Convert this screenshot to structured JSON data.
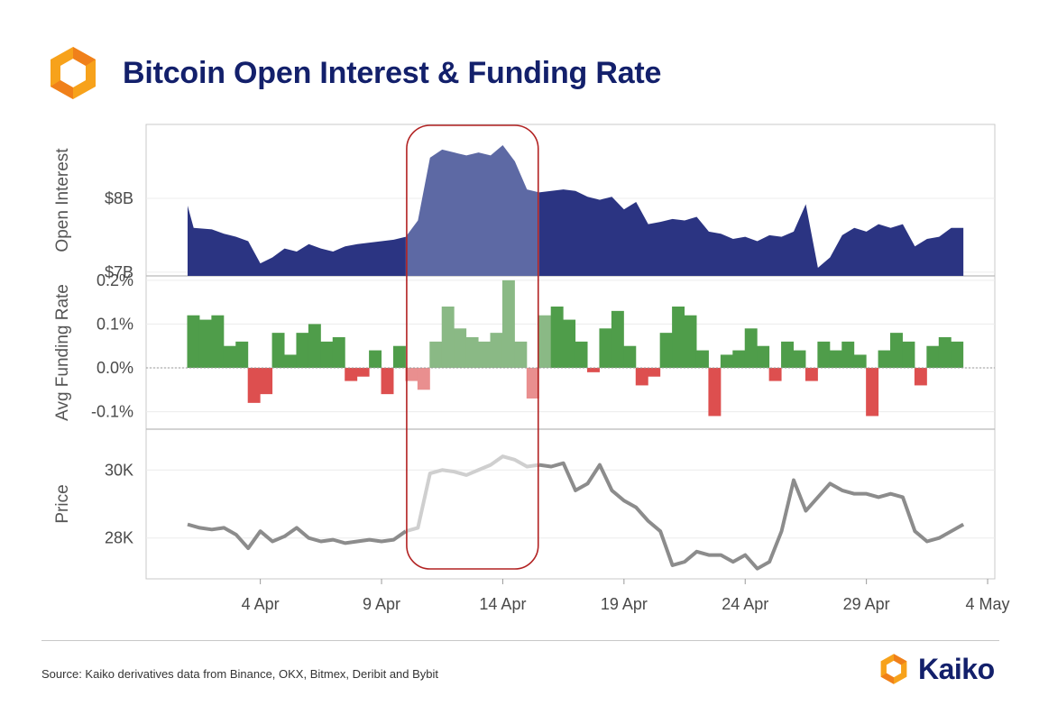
{
  "header": {
    "title": "Bitcoin Open Interest & Funding Rate",
    "logo_icon": "kaiko-hexagon-logo-icon"
  },
  "footer": {
    "source": "Source: Kaiko derivatives data from Binance, OKX, Bitmex, Deribit and Bybit",
    "brand": "Kaiko",
    "brand_icon": "kaiko-hexagon-logo-icon"
  },
  "colors": {
    "title": "#13206b",
    "oi_fill": "#2b3482",
    "oi_highlight": "#5d69a4",
    "funding_positive": "#4f9d4a",
    "funding_negative": "#dd4f4f",
    "funding_positive_highlight": "#8ab985",
    "funding_negative_highlight": "#e98f8f",
    "price_line": "#8c8c8c",
    "price_highlight": "#cfcfcf",
    "highlight_box": "#b22222"
  },
  "chart_data": [
    {
      "type": "area",
      "panel": "open_interest",
      "ylabel": "Open Interest",
      "yticks": [
        "$7B",
        "$8B"
      ],
      "ytick_values": [
        7.0,
        8.0
      ],
      "ylim": [
        6.95,
        9.0
      ],
      "unit": "USD billions",
      "x_start": "2023-04-01",
      "x_end": "2023-05-03",
      "points": [
        [
          "2023-04-01",
          7.9
        ],
        [
          "2023-04-01T06",
          7.6
        ],
        [
          "2023-04-02",
          7.58
        ],
        [
          "2023-04-02T12",
          7.52
        ],
        [
          "2023-04-03",
          7.48
        ],
        [
          "2023-04-03T12",
          7.42
        ],
        [
          "2023-04-04",
          7.12
        ],
        [
          "2023-04-04T12",
          7.2
        ],
        [
          "2023-04-05",
          7.32
        ],
        [
          "2023-04-05T12",
          7.28
        ],
        [
          "2023-04-06",
          7.38
        ],
        [
          "2023-04-06T12",
          7.32
        ],
        [
          "2023-04-07",
          7.28
        ],
        [
          "2023-04-07T12",
          7.35
        ],
        [
          "2023-04-08",
          7.38
        ],
        [
          "2023-04-08T12",
          7.4
        ],
        [
          "2023-04-09",
          7.42
        ],
        [
          "2023-04-09T12",
          7.44
        ],
        [
          "2023-04-10",
          7.48
        ],
        [
          "2023-04-10T12",
          7.7
        ],
        [
          "2023-04-11",
          8.55
        ],
        [
          "2023-04-11T12",
          8.66
        ],
        [
          "2023-04-12",
          8.62
        ],
        [
          "2023-04-12T12",
          8.58
        ],
        [
          "2023-04-13",
          8.62
        ],
        [
          "2023-04-13T12",
          8.58
        ],
        [
          "2023-04-14",
          8.72
        ],
        [
          "2023-04-14T12",
          8.5
        ],
        [
          "2023-04-15",
          8.12
        ],
        [
          "2023-04-15T12",
          8.08
        ],
        [
          "2023-04-16",
          8.1
        ],
        [
          "2023-04-16T12",
          8.12
        ],
        [
          "2023-04-17",
          8.1
        ],
        [
          "2023-04-17T12",
          8.02
        ],
        [
          "2023-04-18",
          7.98
        ],
        [
          "2023-04-18T12",
          8.02
        ],
        [
          "2023-04-19",
          7.85
        ],
        [
          "2023-04-19T12",
          7.95
        ],
        [
          "2023-04-20",
          7.65
        ],
        [
          "2023-04-20T12",
          7.68
        ],
        [
          "2023-04-21",
          7.72
        ],
        [
          "2023-04-21T12",
          7.7
        ],
        [
          "2023-04-22",
          7.75
        ],
        [
          "2023-04-22T12",
          7.55
        ],
        [
          "2023-04-23",
          7.52
        ],
        [
          "2023-04-23T12",
          7.45
        ],
        [
          "2023-04-24",
          7.48
        ],
        [
          "2023-04-24T12",
          7.42
        ],
        [
          "2023-04-25",
          7.5
        ],
        [
          "2023-04-25T12",
          7.48
        ],
        [
          "2023-04-26",
          7.55
        ],
        [
          "2023-04-26T12",
          7.92
        ],
        [
          "2023-04-27",
          7.06
        ],
        [
          "2023-04-27T12",
          7.2
        ],
        [
          "2023-04-28",
          7.5
        ],
        [
          "2023-04-28T12",
          7.6
        ],
        [
          "2023-04-29",
          7.55
        ],
        [
          "2023-04-29T12",
          7.65
        ],
        [
          "2023-04-30",
          7.6
        ],
        [
          "2023-04-30T12",
          7.65
        ],
        [
          "2023-05-01",
          7.35
        ],
        [
          "2023-05-01T12",
          7.45
        ],
        [
          "2023-05-02",
          7.48
        ],
        [
          "2023-05-02T12",
          7.6
        ],
        [
          "2023-05-03",
          7.6
        ]
      ]
    },
    {
      "type": "bar",
      "panel": "funding_rate",
      "ylabel": "Avg Funding Rate",
      "yticks": [
        "-0.1%",
        "0.0%",
        "0.1%",
        "0.2%"
      ],
      "ytick_values": [
        -0.1,
        0.0,
        0.1,
        0.2
      ],
      "ylim": [
        -0.14,
        0.21
      ],
      "unit": "percent",
      "x": [
        "2023-04-01",
        "2023-04-01T12",
        "2023-04-02",
        "2023-04-02T12",
        "2023-04-03",
        "2023-04-03T12",
        "2023-04-04",
        "2023-04-04T12",
        "2023-04-05",
        "2023-04-05T12",
        "2023-04-06",
        "2023-04-06T12",
        "2023-04-07",
        "2023-04-07T12",
        "2023-04-08",
        "2023-04-08T12",
        "2023-04-09",
        "2023-04-09T12",
        "2023-04-10",
        "2023-04-10T12",
        "2023-04-11",
        "2023-04-11T12",
        "2023-04-12",
        "2023-04-12T12",
        "2023-04-13",
        "2023-04-13T12",
        "2023-04-14",
        "2023-04-14T12",
        "2023-04-15",
        "2023-04-15T12",
        "2023-04-16",
        "2023-04-16T12",
        "2023-04-17",
        "2023-04-17T12",
        "2023-04-18",
        "2023-04-18T12",
        "2023-04-19",
        "2023-04-19T12",
        "2023-04-20",
        "2023-04-20T12",
        "2023-04-21",
        "2023-04-21T12",
        "2023-04-22",
        "2023-04-22T12",
        "2023-04-23",
        "2023-04-23T12",
        "2023-04-24",
        "2023-04-24T12",
        "2023-04-25",
        "2023-04-25T12",
        "2023-04-26",
        "2023-04-26T12",
        "2023-04-27",
        "2023-04-27T12",
        "2023-04-28",
        "2023-04-28T12",
        "2023-04-29",
        "2023-04-29T12",
        "2023-04-30",
        "2023-04-30T12",
        "2023-05-01",
        "2023-05-01T12",
        "2023-05-02",
        "2023-05-02T12"
      ],
      "values": [
        0.12,
        0.11,
        0.12,
        0.05,
        0.06,
        -0.08,
        -0.06,
        0.08,
        0.03,
        0.08,
        0.1,
        0.06,
        0.07,
        -0.03,
        -0.02,
        0.04,
        -0.06,
        0.05,
        -0.03,
        -0.05,
        0.06,
        0.14,
        0.09,
        0.07,
        0.06,
        0.08,
        0.2,
        0.06,
        -0.07,
        0.12,
        0.14,
        0.11,
        0.06,
        -0.01,
        0.09,
        0.13,
        0.05,
        -0.04,
        -0.02,
        0.08,
        0.14,
        0.12,
        0.04,
        -0.11,
        0.03,
        0.04,
        0.09,
        0.05,
        -0.03,
        0.06,
        0.04,
        -0.03,
        0.06,
        0.04,
        0.06,
        0.03,
        -0.11,
        0.04,
        0.08,
        0.06,
        -0.04,
        0.05,
        0.07,
        0.06
      ],
      "highlight_range": [
        "2023-04-10",
        "2023-04-15T12"
      ]
    },
    {
      "type": "line",
      "panel": "price",
      "ylabel": "Price",
      "yticks": [
        "28K",
        "30K"
      ],
      "ytick_values": [
        28000,
        30000
      ],
      "ylim": [
        26800,
        31200
      ],
      "unit": "USD",
      "points": [
        [
          "2023-04-01",
          28400
        ],
        [
          "2023-04-01T12",
          28300
        ],
        [
          "2023-04-02",
          28250
        ],
        [
          "2023-04-02T12",
          28300
        ],
        [
          "2023-04-03",
          28100
        ],
        [
          "2023-04-03T12",
          27700
        ],
        [
          "2023-04-04",
          28200
        ],
        [
          "2023-04-04T12",
          27900
        ],
        [
          "2023-04-05",
          28050
        ],
        [
          "2023-04-05T12",
          28300
        ],
        [
          "2023-04-06",
          28000
        ],
        [
          "2023-04-06T12",
          27900
        ],
        [
          "2023-04-07",
          27950
        ],
        [
          "2023-04-07T12",
          27850
        ],
        [
          "2023-04-08",
          27900
        ],
        [
          "2023-04-08T12",
          27950
        ],
        [
          "2023-04-09",
          27900
        ],
        [
          "2023-04-09T12",
          27950
        ],
        [
          "2023-04-10",
          28200
        ],
        [
          "2023-04-10T12",
          28300
        ],
        [
          "2023-04-11",
          29900
        ],
        [
          "2023-04-11T12",
          30000
        ],
        [
          "2023-04-12",
          29950
        ],
        [
          "2023-04-12T12",
          29850
        ],
        [
          "2023-04-13",
          30000
        ],
        [
          "2023-04-13T12",
          30150
        ],
        [
          "2023-04-14",
          30400
        ],
        [
          "2023-04-14T12",
          30300
        ],
        [
          "2023-04-15",
          30100
        ],
        [
          "2023-04-15T12",
          30150
        ],
        [
          "2023-04-16",
          30100
        ],
        [
          "2023-04-16T12",
          30200
        ],
        [
          "2023-04-17",
          29400
        ],
        [
          "2023-04-17T12",
          29600
        ],
        [
          "2023-04-18",
          30150
        ],
        [
          "2023-04-18T12",
          29400
        ],
        [
          "2023-04-19",
          29100
        ],
        [
          "2023-04-19T12",
          28900
        ],
        [
          "2023-04-20",
          28500
        ],
        [
          "2023-04-20T12",
          28200
        ],
        [
          "2023-04-21",
          27200
        ],
        [
          "2023-04-21T12",
          27300
        ],
        [
          "2023-04-22",
          27600
        ],
        [
          "2023-04-22T12",
          27500
        ],
        [
          "2023-04-23",
          27500
        ],
        [
          "2023-04-23T12",
          27300
        ],
        [
          "2023-04-24",
          27500
        ],
        [
          "2023-04-24T12",
          27100
        ],
        [
          "2023-04-25",
          27300
        ],
        [
          "2023-04-25T12",
          28200
        ],
        [
          "2023-04-26",
          29700
        ],
        [
          "2023-04-26T12",
          28800
        ],
        [
          "2023-04-27",
          29200
        ],
        [
          "2023-04-27T12",
          29600
        ],
        [
          "2023-04-28",
          29400
        ],
        [
          "2023-04-28T12",
          29300
        ],
        [
          "2023-04-29",
          29300
        ],
        [
          "2023-04-29T12",
          29200
        ],
        [
          "2023-04-30",
          29300
        ],
        [
          "2023-04-30T12",
          29200
        ],
        [
          "2023-05-01",
          28200
        ],
        [
          "2023-05-01T12",
          27900
        ],
        [
          "2023-05-02",
          28000
        ],
        [
          "2023-05-02T12",
          28200
        ],
        [
          "2023-05-03",
          28400
        ]
      ]
    }
  ],
  "x_axis": {
    "ticks": [
      "4 Apr",
      "9 Apr",
      "14 Apr",
      "19 Apr",
      "24 Apr",
      "29 Apr",
      "4 May"
    ],
    "tick_dates": [
      "2023-04-04",
      "2023-04-09",
      "2023-04-14",
      "2023-04-19",
      "2023-04-24",
      "2023-04-29",
      "2023-05-04"
    ],
    "highlight_range": [
      "2023-04-10",
      "2023-04-15T12"
    ]
  }
}
